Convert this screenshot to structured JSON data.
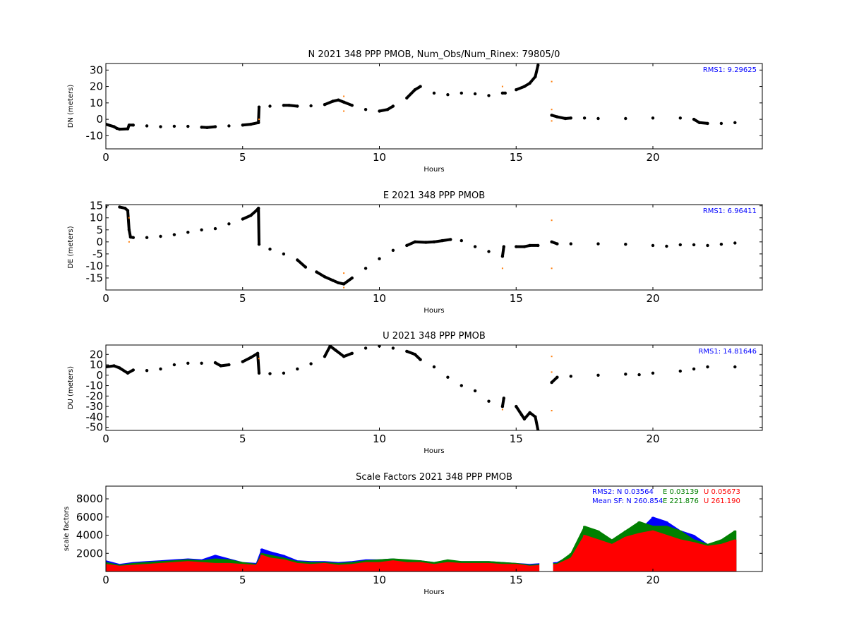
{
  "chart_data": [
    {
      "type": "scatter",
      "title": "N 2021 348 PPP  PMOB, Num_Obs/Num_Rinex: 79805/0",
      "xlabel": "Hours",
      "ylabel": "DN (meters)",
      "xlim": [
        0,
        24
      ],
      "ylim": [
        -18,
        34
      ],
      "xticks": [
        "0",
        "5",
        "10",
        "15",
        "20"
      ],
      "yticks": [
        "30",
        "20",
        "10",
        "0",
        "-10"
      ],
      "annotation": "RMS1:  9.29625",
      "annotation_color": "#0000ff",
      "series_color": "#000000",
      "outlier_color": "#ff7f0e",
      "x": [
        0,
        0.3,
        0.4,
        0.5,
        0.8,
        0.85,
        1.0,
        1.5,
        2.0,
        2.5,
        3.0,
        3.5,
        3.7,
        4.0,
        4.5,
        5.0,
        5.3,
        5.58,
        5.6,
        6.0,
        6.5,
        6.7,
        7.0,
        7.5,
        8.0,
        8.3,
        8.5,
        8.7,
        9.0,
        9.5,
        10.0,
        10.3,
        10.5,
        11.0,
        11.3,
        11.5,
        12.0,
        12.5,
        13.0,
        13.5,
        14.0,
        14.5,
        14.6,
        15.0,
        15.3,
        15.5,
        15.7,
        15.8,
        16.3,
        16.5,
        16.8,
        17.0,
        17.5,
        18.0,
        19.0,
        20.0,
        21.0,
        21.5,
        21.7,
        22.0,
        22.5,
        23.0
      ],
      "y": [
        -3,
        -4.5,
        -5.5,
        -6,
        -5.8,
        -3.5,
        -3.5,
        -4,
        -4.5,
        -4.2,
        -4.3,
        -4.8,
        -5,
        -4.5,
        -4,
        -3.5,
        -3,
        -2,
        7.5,
        8,
        8.5,
        8.5,
        8,
        8.2,
        9,
        11,
        11.8,
        10.5,
        8.5,
        6,
        5,
        6,
        8,
        13,
        18,
        20,
        16,
        15,
        16,
        15.5,
        14.5,
        16,
        16,
        18,
        20,
        22,
        26,
        33,
        2.5,
        1.5,
        0.5,
        0.8,
        0.8,
        0.5,
        0.5,
        0.8,
        0.8,
        0,
        -2,
        -2.5,
        -2.5,
        -2
      ],
      "outliers": [
        [
          5.6,
          0
        ],
        [
          8.7,
          14
        ],
        [
          8.7,
          5
        ],
        [
          14.5,
          20
        ],
        [
          16.3,
          23
        ],
        [
          16.3,
          6
        ],
        [
          16.3,
          -1
        ]
      ]
    },
    {
      "type": "scatter",
      "title": "E 2021 348 PPP  PMOB",
      "xlabel": "Hours",
      "ylabel": "DE (meters)",
      "xlim": [
        0,
        24
      ],
      "ylim": [
        -20,
        15.5
      ],
      "xticks": [
        "0",
        "5",
        "10",
        "15",
        "20"
      ],
      "yticks": [
        "15",
        "10",
        "5",
        "0",
        "-5",
        "-10",
        "-15"
      ],
      "annotation": "RMS1:  6.96411",
      "annotation_color": "#0000ff",
      "series_color": "#000000",
      "outlier_color": "#ff7f0e",
      "x": [
        0,
        0.5,
        0.7,
        0.8,
        0.85,
        0.9,
        1.0,
        1.5,
        2.0,
        2.5,
        3.0,
        3.5,
        4.0,
        4.5,
        5.0,
        5.3,
        5.5,
        5.58,
        5.6,
        6.0,
        6.5,
        7.0,
        7.3,
        7.7,
        8.0,
        8.3,
        8.5,
        8.7,
        9.0,
        9.5,
        10.0,
        10.5,
        11.0,
        11.3,
        11.7,
        12.0,
        12.3,
        12.6,
        13.0,
        13.5,
        14.0,
        14.5,
        14.55,
        15.0,
        15.3,
        15.5,
        15.8,
        16.3,
        16.5,
        17.0,
        18.0,
        19.0,
        20.0,
        20.5,
        21.0,
        21.5,
        22.0,
        22.5,
        23.0
      ],
      "y": [
        14.5,
        14.5,
        14,
        13,
        5,
        2,
        1.8,
        1.8,
        2.3,
        3,
        4,
        5,
        5.5,
        7.5,
        9.5,
        11,
        13,
        14,
        -1,
        -3,
        -5,
        -7.5,
        -10.5,
        -12.5,
        -14.5,
        -16,
        -17,
        -17.5,
        -15,
        -11,
        -7,
        -3.5,
        -1.5,
        0,
        -0.2,
        0,
        0.5,
        1,
        0.5,
        -2,
        -4,
        -6,
        -2,
        -2,
        -2,
        -1.5,
        -1.5,
        0,
        -0.8,
        -0.8,
        -0.8,
        -1,
        -1.5,
        -1.8,
        -1.2,
        -1.2,
        -1.5,
        -1,
        -0.5
      ],
      "outliers": [
        [
          0.85,
          10
        ],
        [
          0.85,
          0
        ],
        [
          8.7,
          -13
        ],
        [
          8.7,
          -19
        ],
        [
          14.5,
          -11
        ],
        [
          16.3,
          9
        ],
        [
          16.3,
          -11
        ]
      ]
    },
    {
      "type": "scatter",
      "title": "U 2021 348 PPP  PMOB",
      "xlabel": "Hours",
      "ylabel": "DU (meters)",
      "xlim": [
        0,
        24
      ],
      "ylim": [
        -53,
        29
      ],
      "xticks": [
        "0",
        "5",
        "10",
        "15",
        "20"
      ],
      "yticks": [
        "20",
        "10",
        "0",
        "-10",
        "-20",
        "-30",
        "-40",
        "-50"
      ],
      "annotation": "RMS1: 14.81646",
      "annotation_color": "#0000ff",
      "series_color": "#000000",
      "outlier_color": "#ff7f0e",
      "x": [
        0,
        0.3,
        0.5,
        0.8,
        1.0,
        1.5,
        2.0,
        2.5,
        3.0,
        3.5,
        4.0,
        4.2,
        4.5,
        5.0,
        5.3,
        5.55,
        5.6,
        6.0,
        6.5,
        7.0,
        7.5,
        8.0,
        8.2,
        8.4,
        8.7,
        9.0,
        9.5,
        10.0,
        10.5,
        11.0,
        11.3,
        11.5,
        12.0,
        12.5,
        13.0,
        13.5,
        14.0,
        14.5,
        14.55,
        15.0,
        15.2,
        15.3,
        15.5,
        15.7,
        15.8,
        16.3,
        16.5,
        17.0,
        18.0,
        19.0,
        19.5,
        20.0,
        21.0,
        21.5,
        22.0,
        23.0
      ],
      "y": [
        8,
        9,
        7,
        2,
        5,
        4.5,
        6,
        10,
        11.5,
        11.5,
        12,
        9,
        10,
        13,
        17,
        21,
        2,
        1.5,
        2,
        6,
        11,
        18,
        28,
        24,
        18,
        21,
        26,
        28,
        26,
        23,
        20,
        15,
        8,
        -2,
        -10,
        -15,
        -25,
        -30,
        -22,
        -30,
        -38,
        -42,
        -36,
        -40,
        -53,
        -7,
        -2,
        -1,
        0,
        1,
        0.5,
        2,
        4,
        6,
        8,
        8
      ],
      "outliers": [
        [
          5.6,
          16
        ],
        [
          14.5,
          -33
        ],
        [
          16.3,
          18
        ],
        [
          16.3,
          -34
        ],
        [
          16.3,
          3
        ]
      ]
    },
    {
      "type": "bar",
      "title": "Scale Factors 2021 348 PPP  PMOB",
      "xlabel": "Hours",
      "ylabel": "scale factors",
      "xlim": [
        0,
        24
      ],
      "ylim": [
        0,
        9400
      ],
      "xticks": [
        "0",
        "5",
        "10",
        "15",
        "20"
      ],
      "yticks": [
        "8000",
        "6000",
        "4000",
        "2000"
      ],
      "stats": [
        {
          "label": "RMS2: N  0.03564",
          "color": "#0000ff"
        },
        {
          "label": "E  0.03139",
          "color": "#008000"
        },
        {
          "label": "U  0.05673",
          "color": "#ff0000"
        },
        {
          "label": "Mean SF: N 260.854",
          "color": "#0000ff"
        },
        {
          "label": "E 221.876",
          "color": "#008000"
        },
        {
          "label": "U 261.190",
          "color": "#ff0000"
        }
      ],
      "x": [
        0.0,
        0.5,
        1.0,
        1.5,
        2.0,
        2.5,
        3.0,
        3.5,
        4.0,
        4.5,
        5.0,
        5.5,
        5.7,
        6.0,
        6.5,
        7.0,
        7.5,
        8.0,
        8.5,
        9.0,
        9.5,
        10.0,
        10.5,
        11.0,
        11.5,
        12.0,
        12.5,
        13.0,
        13.5,
        14.0,
        14.5,
        15.0,
        15.5,
        16.5,
        17.0,
        17.5,
        18.0,
        18.5,
        19.0,
        19.5,
        20.0,
        20.5,
        21.0,
        21.5,
        22.0,
        22.5,
        23.0
      ],
      "series": [
        {
          "name": "N",
          "color": "#0000ff",
          "values": [
            1200,
            800,
            1000,
            1100,
            1200,
            1300,
            1400,
            1300,
            1800,
            1400,
            1000,
            900,
            2500,
            2200,
            1800,
            1200,
            1100,
            1100,
            1000,
            1100,
            1300,
            1300,
            1400,
            1200,
            1200,
            1000,
            1200,
            1100,
            1100,
            1100,
            1000,
            900,
            800,
            1000,
            1800,
            3000,
            2500,
            3500,
            4000,
            4500,
            6000,
            5500,
            4500,
            4000,
            3000,
            2500,
            3500
          ]
        },
        {
          "name": "E",
          "color": "#008000",
          "values": [
            1000,
            700,
            900,
            1000,
            1100,
            1200,
            1300,
            1200,
            1400,
            1300,
            1000,
            800,
            2000,
            1800,
            1500,
            1100,
            1000,
            1000,
            900,
            1000,
            1200,
            1300,
            1400,
            1300,
            1200,
            1000,
            1300,
            1100,
            1100,
            1100,
            1000,
            900,
            700,
            900,
            2000,
            5000,
            4500,
            3500,
            4500,
            5500,
            5000,
            5000,
            4500,
            3500,
            3000,
            3500,
            4500
          ]
        },
        {
          "name": "U",
          "color": "#ff0000",
          "values": [
            800,
            600,
            700,
            800,
            900,
            1000,
            1100,
            1000,
            900,
            900,
            800,
            700,
            1800,
            1500,
            1300,
            900,
            800,
            900,
            700,
            800,
            1000,
            1000,
            1200,
            1000,
            1000,
            800,
            1000,
            900,
            900,
            900,
            800,
            800,
            600,
            800,
            1500,
            4000,
            3500,
            3000,
            3800,
            4200,
            4500,
            4000,
            3500,
            3200,
            2800,
            3000,
            3500
          ]
        }
      ]
    }
  ]
}
